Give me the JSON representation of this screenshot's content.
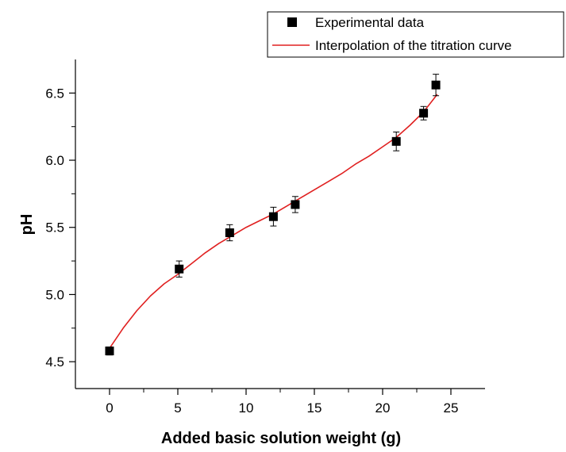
{
  "chart_data": {
    "type": "scatter",
    "title": "",
    "xlabel": "Added basic solution weight (g)",
    "ylabel": "pH",
    "xlim": [
      -2.5,
      27.5
    ],
    "ylim": [
      4.3,
      6.75
    ],
    "x_ticks": [
      0,
      5,
      10,
      15,
      20,
      25
    ],
    "x_minor_ticks": [
      2.5,
      7.5,
      12.5,
      17.5,
      22.5
    ],
    "y_ticks": [
      4.5,
      5.0,
      5.5,
      6.0,
      6.5
    ],
    "y_tick_labels": [
      "4.5",
      "5.0",
      "5.5",
      "6.0",
      "6.5"
    ],
    "y_minor_ticks": [
      4.75,
      5.25,
      5.75,
      6.25
    ],
    "grid": false,
    "legend_position": "top-right",
    "colors": {
      "points": "#000000",
      "curve": "#e02020",
      "axis": "#000000"
    },
    "series": [
      {
        "name": "Experimental data",
        "kind": "scatter",
        "marker": "square",
        "points": [
          {
            "x": 0,
            "y": 4.58,
            "err": 0.03
          },
          {
            "x": 5.1,
            "y": 5.19,
            "err": 0.06
          },
          {
            "x": 8.8,
            "y": 5.46,
            "err": 0.06
          },
          {
            "x": 12.0,
            "y": 5.58,
            "err": 0.07
          },
          {
            "x": 13.6,
            "y": 5.67,
            "err": 0.06
          },
          {
            "x": 21.0,
            "y": 6.14,
            "err": 0.07
          },
          {
            "x": 23.0,
            "y": 6.35,
            "err": 0.05
          },
          {
            "x": 23.9,
            "y": 6.56,
            "err": 0.08
          }
        ]
      },
      {
        "name": "Interpolation of the titration curve",
        "kind": "line",
        "points": [
          {
            "x": 0,
            "y": 4.6
          },
          {
            "x": 1,
            "y": 4.75
          },
          {
            "x": 2,
            "y": 4.88
          },
          {
            "x": 3,
            "y": 4.99
          },
          {
            "x": 4,
            "y": 5.08
          },
          {
            "x": 5,
            "y": 5.15
          },
          {
            "x": 6,
            "y": 5.23
          },
          {
            "x": 7,
            "y": 5.31
          },
          {
            "x": 8,
            "y": 5.38
          },
          {
            "x": 9,
            "y": 5.44
          },
          {
            "x": 10,
            "y": 5.5
          },
          {
            "x": 11,
            "y": 5.55
          },
          {
            "x": 12,
            "y": 5.6
          },
          {
            "x": 13,
            "y": 5.66
          },
          {
            "x": 14,
            "y": 5.72
          },
          {
            "x": 15,
            "y": 5.78
          },
          {
            "x": 16,
            "y": 5.84
          },
          {
            "x": 17,
            "y": 5.9
          },
          {
            "x": 18,
            "y": 5.97
          },
          {
            "x": 19,
            "y": 6.03
          },
          {
            "x": 20,
            "y": 6.1
          },
          {
            "x": 21,
            "y": 6.17
          },
          {
            "x": 22,
            "y": 6.26
          },
          {
            "x": 23,
            "y": 6.36
          },
          {
            "x": 24,
            "y": 6.49
          }
        ]
      }
    ]
  }
}
